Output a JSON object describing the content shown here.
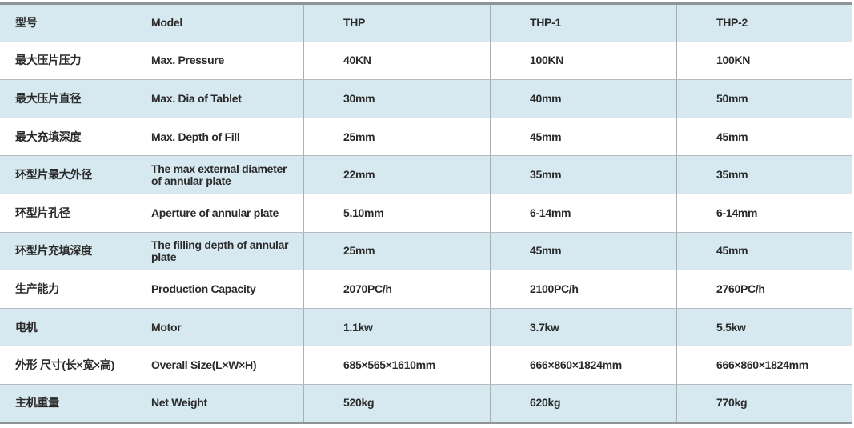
{
  "columns": [
    "型号",
    "Model",
    "THP",
    "THP-1",
    "THP-2"
  ],
  "colors": {
    "row_alt": "#d6e9f0",
    "border": "#8f9497"
  },
  "rows": [
    [
      "最大压片压力",
      "Max. Pressure",
      "40KN",
      "100KN",
      "100KN"
    ],
    [
      "最大压片直径",
      "Max. Dia of Tablet",
      "30mm",
      "40mm",
      "50mm"
    ],
    [
      "最大充填深度",
      "Max. Depth of Fill",
      "25mm",
      "45mm",
      "45mm"
    ],
    [
      "环型片最大外径",
      "The max external diameter of annular plate",
      "22mm",
      "35mm",
      "35mm"
    ],
    [
      "环型片孔径",
      "Aperture of annular plate",
      "5.10mm",
      "6-14mm",
      "6-14mm"
    ],
    [
      "环型片充填深度",
      "The filling depth of annular plate",
      "25mm",
      "45mm",
      "45mm"
    ],
    [
      "生产能力",
      "Production Capacity",
      "2070PC/h",
      "2100PC/h",
      "2760PC/h"
    ],
    [
      "电机",
      "Motor",
      "1.1kw",
      "3.7kw",
      "5.5kw"
    ],
    [
      "外形 尺寸(长×宽×高)",
      "Overall Size(L×W×H)",
      "685×565×1610mm",
      "666×860×1824mm",
      "666×860×1824mm"
    ],
    [
      "主机重量",
      "Net Weight",
      "520kg",
      "620kg",
      "770kg"
    ]
  ]
}
